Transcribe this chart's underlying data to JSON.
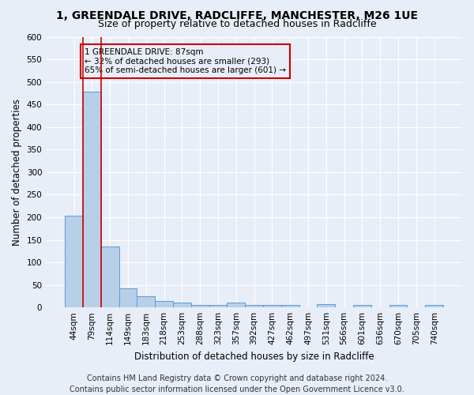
{
  "title1": "1, GREENDALE DRIVE, RADCLIFFE, MANCHESTER, M26 1UE",
  "title2": "Size of property relative to detached houses in Radcliffe",
  "xlabel": "Distribution of detached houses by size in Radcliffe",
  "ylabel": "Number of detached properties",
  "footer1": "Contains HM Land Registry data © Crown copyright and database right 2024.",
  "footer2": "Contains public sector information licensed under the Open Government Licence v3.0.",
  "bin_labels": [
    "44sqm",
    "79sqm",
    "114sqm",
    "149sqm",
    "183sqm",
    "218sqm",
    "253sqm",
    "288sqm",
    "323sqm",
    "357sqm",
    "392sqm",
    "427sqm",
    "462sqm",
    "497sqm",
    "531sqm",
    "566sqm",
    "601sqm",
    "636sqm",
    "670sqm",
    "705sqm",
    "740sqm"
  ],
  "bar_values": [
    203,
    478,
    135,
    43,
    25,
    15,
    11,
    6,
    5,
    10,
    5,
    5,
    5,
    0,
    8,
    0,
    5,
    0,
    5,
    0,
    5
  ],
  "bar_color": "#b8cfe8",
  "bar_edge_color": "#5b9bd5",
  "highlight_bar_index": 1,
  "highlight_color": "#cc0000",
  "annotation_text": "1 GREENDALE DRIVE: 87sqm\n← 32% of detached houses are smaller (293)\n65% of semi-detached houses are larger (601) →",
  "annotation_box_color": "#cc0000",
  "ylim": [
    0,
    600
  ],
  "yticks": [
    0,
    50,
    100,
    150,
    200,
    250,
    300,
    350,
    400,
    450,
    500,
    550,
    600
  ],
  "bg_color": "#e8eef7",
  "grid_color": "#ffffff",
  "title_fontsize": 10,
  "subtitle_fontsize": 9,
  "axis_label_fontsize": 8.5,
  "tick_fontsize": 7.5,
  "footer_fontsize": 7,
  "ann_fontsize": 7.5
}
